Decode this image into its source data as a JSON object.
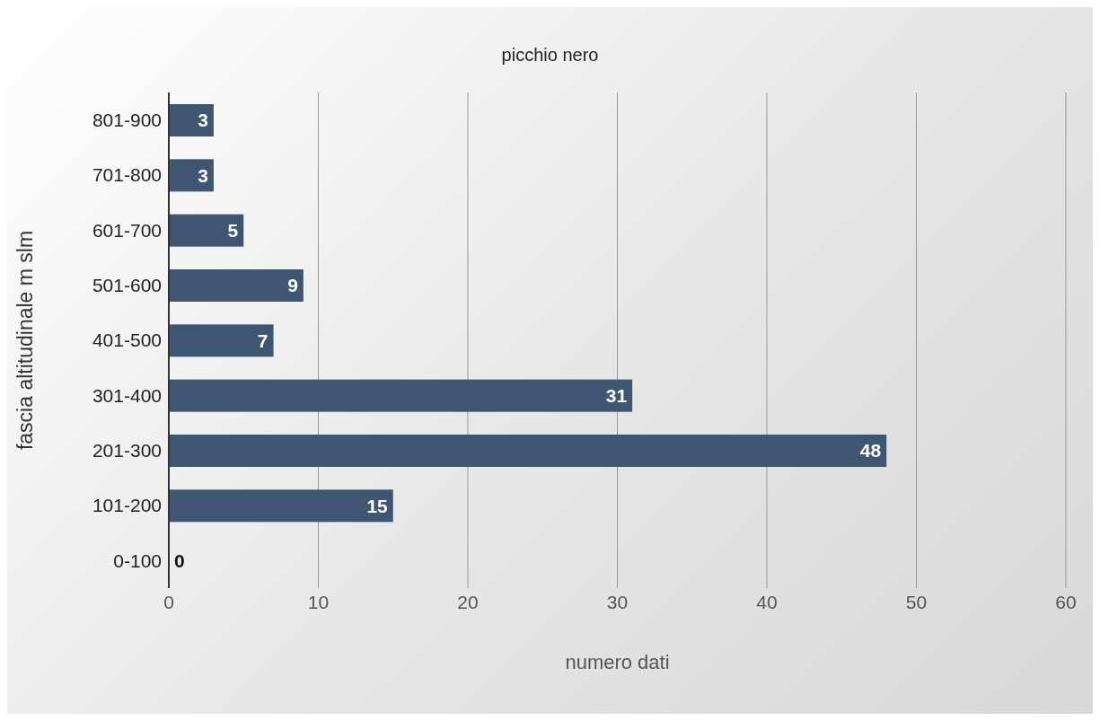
{
  "chart_data": {
    "type": "bar",
    "orientation": "horizontal",
    "title": "picchio nero",
    "xlabel": "numero dati",
    "ylabel": "fascia altitudinale m slm",
    "categories": [
      "801-900",
      "701-800",
      "601-700",
      "501-600",
      "401-500",
      "301-400",
      "201-300",
      "101-200",
      "0-100"
    ],
    "values": [
      3,
      3,
      5,
      9,
      7,
      31,
      48,
      15,
      0
    ],
    "color": "#3f5673",
    "xlim": [
      0,
      60
    ],
    "xticks": [
      0,
      10,
      20,
      30,
      40,
      50,
      60
    ],
    "grid": "x",
    "data_labels": true
  }
}
